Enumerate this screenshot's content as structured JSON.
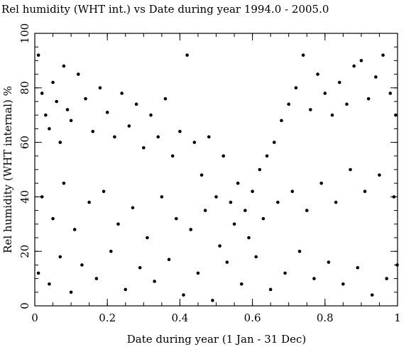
{
  "chart_data": {
    "type": "scatter",
    "title": "Rel humidity (WHT int.) vs Date during year  1994.0 - 2005.0",
    "xlabel": "Date during year (1 Jan - 31 Dec)",
    "ylabel": "Rel humidity (WHT internal) %",
    "xlim": [
      0,
      1
    ],
    "ylim": [
      0,
      100
    ],
    "xticks": [
      0,
      0.2,
      0.4,
      0.6,
      0.8,
      1
    ],
    "xtick_labels": [
      "0",
      "0.2",
      "0.4",
      "0.6",
      "0.8",
      "1"
    ],
    "yticks": [
      0,
      20,
      40,
      60,
      80,
      100
    ],
    "ytick_labels": [
      "0",
      "20",
      "40",
      "60",
      "80",
      "100"
    ],
    "grid": false,
    "marker_color": "#000000",
    "points": [
      [
        0.01,
        92
      ],
      [
        0.02,
        78
      ],
      [
        0.03,
        70
      ],
      [
        0.04,
        65
      ],
      [
        0.05,
        82
      ],
      [
        0.06,
        75
      ],
      [
        0.07,
        60
      ],
      [
        0.08,
        88
      ],
      [
        0.09,
        72
      ],
      [
        0.1,
        68
      ],
      [
        0.12,
        85
      ],
      [
        0.14,
        76
      ],
      [
        0.16,
        64
      ],
      [
        0.18,
        80
      ],
      [
        0.2,
        71
      ],
      [
        0.22,
        62
      ],
      [
        0.24,
        78
      ],
      [
        0.26,
        66
      ],
      [
        0.28,
        74
      ],
      [
        0.3,
        58
      ],
      [
        0.32,
        70
      ],
      [
        0.34,
        62
      ],
      [
        0.36,
        76
      ],
      [
        0.38,
        55
      ],
      [
        0.4,
        64
      ],
      [
        0.42,
        92
      ],
      [
        0.44,
        60
      ],
      [
        0.46,
        48
      ],
      [
        0.48,
        62
      ],
      [
        0.5,
        40
      ],
      [
        0.52,
        55
      ],
      [
        0.54,
        38
      ],
      [
        0.56,
        45
      ],
      [
        0.58,
        35
      ],
      [
        0.6,
        42
      ],
      [
        0.62,
        50
      ],
      [
        0.64,
        55
      ],
      [
        0.66,
        60
      ],
      [
        0.68,
        68
      ],
      [
        0.7,
        74
      ],
      [
        0.72,
        80
      ],
      [
        0.74,
        92
      ],
      [
        0.76,
        72
      ],
      [
        0.78,
        85
      ],
      [
        0.8,
        78
      ],
      [
        0.82,
        70
      ],
      [
        0.84,
        82
      ],
      [
        0.86,
        74
      ],
      [
        0.88,
        88
      ],
      [
        0.9,
        90
      ],
      [
        0.92,
        76
      ],
      [
        0.94,
        84
      ],
      [
        0.96,
        92
      ],
      [
        0.98,
        78
      ],
      [
        0.995,
        70
      ],
      [
        0.02,
        40
      ],
      [
        0.05,
        32
      ],
      [
        0.08,
        45
      ],
      [
        0.11,
        28
      ],
      [
        0.15,
        38
      ],
      [
        0.19,
        42
      ],
      [
        0.23,
        30
      ],
      [
        0.27,
        36
      ],
      [
        0.31,
        25
      ],
      [
        0.35,
        40
      ],
      [
        0.39,
        32
      ],
      [
        0.43,
        28
      ],
      [
        0.47,
        35
      ],
      [
        0.51,
        22
      ],
      [
        0.55,
        30
      ],
      [
        0.59,
        25
      ],
      [
        0.63,
        32
      ],
      [
        0.67,
        38
      ],
      [
        0.71,
        42
      ],
      [
        0.75,
        35
      ],
      [
        0.79,
        45
      ],
      [
        0.83,
        38
      ],
      [
        0.87,
        50
      ],
      [
        0.91,
        42
      ],
      [
        0.95,
        48
      ],
      [
        0.99,
        40
      ],
      [
        0.01,
        12
      ],
      [
        0.04,
        8
      ],
      [
        0.07,
        18
      ],
      [
        0.1,
        5
      ],
      [
        0.13,
        15
      ],
      [
        0.17,
        10
      ],
      [
        0.21,
        20
      ],
      [
        0.25,
        6
      ],
      [
        0.29,
        14
      ],
      [
        0.33,
        9
      ],
      [
        0.37,
        17
      ],
      [
        0.41,
        4
      ],
      [
        0.45,
        12
      ],
      [
        0.49,
        2
      ],
      [
        0.53,
        16
      ],
      [
        0.57,
        8
      ],
      [
        0.61,
        18
      ],
      [
        0.65,
        6
      ],
      [
        0.69,
        12
      ],
      [
        0.73,
        20
      ],
      [
        0.77,
        10
      ],
      [
        0.81,
        16
      ],
      [
        0.85,
        8
      ],
      [
        0.89,
        14
      ],
      [
        0.93,
        4
      ],
      [
        0.97,
        10
      ],
      [
        0.999,
        15
      ]
    ]
  }
}
